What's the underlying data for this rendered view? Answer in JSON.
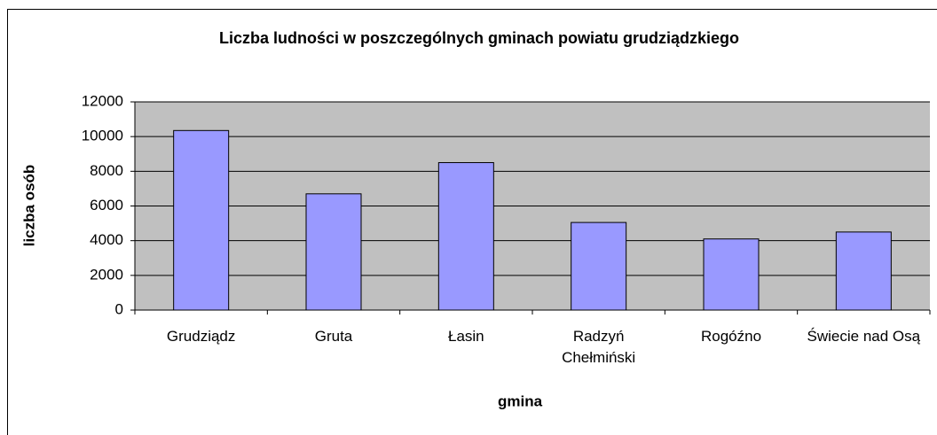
{
  "chart_data": {
    "type": "bar",
    "title": "Liczba ludności w poszczególnych gminach powiatu grudziądzkiego",
    "x_label": "gmina",
    "y_label": "liczba osób",
    "categories": [
      "Grudziądz",
      "Gruta",
      "Łasin",
      "Radzyń Chełmiński",
      "Rogóźno",
      "Świecie nad Osą"
    ],
    "values": [
      10350,
      6700,
      8500,
      5050,
      4100,
      4500
    ],
    "color": "#9999ff",
    "ylim": [
      0,
      12000
    ],
    "yticks": [
      0,
      2000,
      4000,
      6000,
      8000,
      10000,
      12000
    ],
    "grid": true
  }
}
